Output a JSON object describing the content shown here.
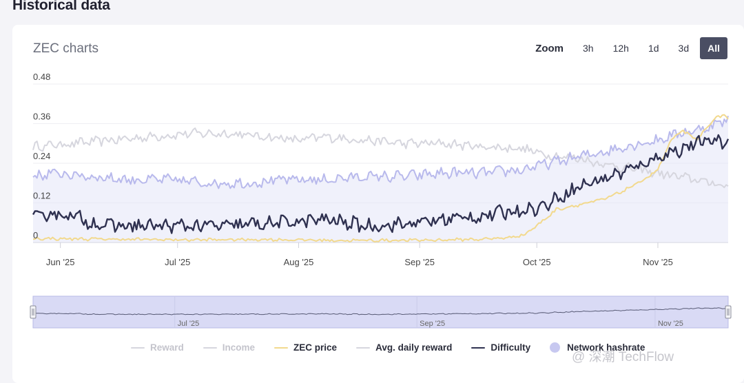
{
  "page": {
    "section_title": "Historical data",
    "card_title": "ZEC charts",
    "watermark": "@ 深潮 TechFlow"
  },
  "zoom": {
    "label": "Zoom",
    "options": [
      "3h",
      "12h",
      "1d",
      "3d",
      "All"
    ],
    "selected": "All"
  },
  "chart_data": {
    "type": "line",
    "title": "ZEC charts",
    "ylim": [
      0,
      0.48
    ],
    "y_ticks": [
      "0",
      "0.12",
      "0.24",
      "0.36",
      "0.48"
    ],
    "x_range_days": [
      0,
      178
    ],
    "x_ticks": [
      {
        "label": "Jun '25",
        "day": 7
      },
      {
        "label": "Jul '25",
        "day": 37
      },
      {
        "label": "Aug '25",
        "day": 68
      },
      {
        "label": "Sep '25",
        "day": 99
      },
      {
        "label": "Oct '25",
        "day": 129
      },
      {
        "label": "Nov '25",
        "day": 160
      }
    ],
    "navigator_ticks": [
      "Jul '25",
      "Sep '25",
      "Nov '25"
    ],
    "series": [
      {
        "name": "Avg. daily reward",
        "color": "#d6d6de",
        "width": 2,
        "keypoints": [
          [
            0,
            0.29
          ],
          [
            10,
            0.3
          ],
          [
            20,
            0.31
          ],
          [
            30,
            0.32
          ],
          [
            40,
            0.33
          ],
          [
            50,
            0.33
          ],
          [
            60,
            0.32
          ],
          [
            68,
            0.31
          ],
          [
            75,
            0.32
          ],
          [
            85,
            0.31
          ],
          [
            95,
            0.3
          ],
          [
            105,
            0.3
          ],
          [
            115,
            0.29
          ],
          [
            125,
            0.285
          ],
          [
            130,
            0.27
          ],
          [
            135,
            0.26
          ],
          [
            140,
            0.255
          ],
          [
            145,
            0.24
          ],
          [
            150,
            0.23
          ],
          [
            155,
            0.22
          ],
          [
            160,
            0.21
          ],
          [
            165,
            0.2
          ],
          [
            170,
            0.19
          ],
          [
            178,
            0.17
          ]
        ],
        "amplitude": 0.012
      },
      {
        "name": "Network hashrate",
        "color": "#b8b9ec",
        "width": 2,
        "keypoints": [
          [
            0,
            0.2
          ],
          [
            5,
            0.21
          ],
          [
            15,
            0.2
          ],
          [
            25,
            0.19
          ],
          [
            35,
            0.19
          ],
          [
            45,
            0.18
          ],
          [
            55,
            0.18
          ],
          [
            65,
            0.19
          ],
          [
            75,
            0.19
          ],
          [
            85,
            0.2
          ],
          [
            95,
            0.2
          ],
          [
            105,
            0.21
          ],
          [
            115,
            0.21
          ],
          [
            125,
            0.22
          ],
          [
            132,
            0.24
          ],
          [
            140,
            0.26
          ],
          [
            148,
            0.28
          ],
          [
            155,
            0.3
          ],
          [
            160,
            0.31
          ],
          [
            165,
            0.33
          ],
          [
            170,
            0.34
          ],
          [
            175,
            0.36
          ],
          [
            178,
            0.37
          ]
        ],
        "amplitude": 0.014,
        "fill": "#e4e5f7"
      },
      {
        "name": "ZEC price",
        "color": "#f2d98d",
        "width": 2,
        "keypoints": [
          [
            0,
            0.012
          ],
          [
            20,
            0.01
          ],
          [
            40,
            0.008
          ],
          [
            60,
            0.009
          ],
          [
            80,
            0.006
          ],
          [
            100,
            0.007
          ],
          [
            115,
            0.01
          ],
          [
            122,
            0.015
          ],
          [
            126,
            0.025
          ],
          [
            130,
            0.06
          ],
          [
            134,
            0.1
          ],
          [
            138,
            0.11
          ],
          [
            142,
            0.12
          ],
          [
            146,
            0.13
          ],
          [
            150,
            0.15
          ],
          [
            155,
            0.18
          ],
          [
            160,
            0.22
          ],
          [
            163,
            0.3
          ],
          [
            166,
            0.34
          ],
          [
            170,
            0.31
          ],
          [
            174,
            0.37
          ],
          [
            177,
            0.39
          ],
          [
            178,
            0.37
          ]
        ],
        "amplitude": 0.004
      },
      {
        "name": "Difficulty",
        "color": "#2f3150",
        "width": 2.4,
        "keypoints": [
          [
            0,
            0.07
          ],
          [
            5,
            0.09
          ],
          [
            10,
            0.08
          ],
          [
            15,
            0.06
          ],
          [
            20,
            0.05
          ],
          [
            30,
            0.05
          ],
          [
            40,
            0.05
          ],
          [
            50,
            0.05
          ],
          [
            55,
            0.055
          ],
          [
            65,
            0.06
          ],
          [
            75,
            0.07
          ],
          [
            85,
            0.05
          ],
          [
            95,
            0.055
          ],
          [
            105,
            0.07
          ],
          [
            115,
            0.08
          ],
          [
            125,
            0.1
          ],
          [
            130,
            0.105
          ],
          [
            135,
            0.14
          ],
          [
            140,
            0.17
          ],
          [
            145,
            0.19
          ],
          [
            150,
            0.21
          ],
          [
            155,
            0.23
          ],
          [
            160,
            0.26
          ],
          [
            165,
            0.28
          ],
          [
            170,
            0.3
          ],
          [
            175,
            0.31
          ],
          [
            178,
            0.3
          ]
        ],
        "amplitude": 0.018
      }
    ],
    "legend": [
      {
        "name": "Reward",
        "color": "#d6d6de",
        "kind": "line",
        "active": false
      },
      {
        "name": "Income",
        "color": "#d6d6de",
        "kind": "line",
        "active": false
      },
      {
        "name": "ZEC price",
        "color": "#f2d98d",
        "kind": "line",
        "active": true
      },
      {
        "name": "Avg. daily reward",
        "color": "#d6d6de",
        "kind": "line",
        "active": true
      },
      {
        "name": "Difficulty",
        "color": "#2f3150",
        "kind": "line",
        "active": true
      },
      {
        "name": "Network hashrate",
        "color": "#c7c8f0",
        "kind": "dot",
        "active": true
      }
    ]
  }
}
